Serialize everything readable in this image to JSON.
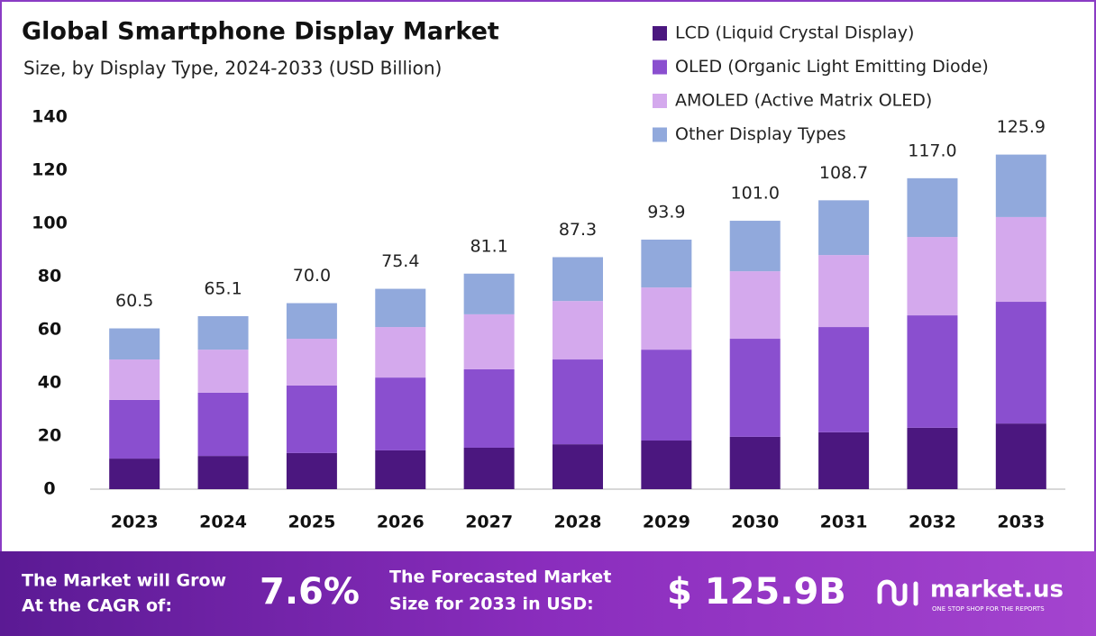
{
  "chart_data": {
    "type": "stacked-bar",
    "title": "Global Smartphone Display Market",
    "subtitle": "Size, by Display Type, 2024-2033 (USD Billion)",
    "categories": [
      "2023",
      "2024",
      "2025",
      "2026",
      "2027",
      "2028",
      "2029",
      "2030",
      "2031",
      "2032",
      "2033"
    ],
    "series": [
      {
        "name": "LCD (Liquid Crystal Display)",
        "color": "#4b177f",
        "values": [
          11.5,
          12.5,
          13.6,
          14.6,
          15.6,
          16.9,
          18.3,
          19.7,
          21.4,
          23.1,
          24.7
        ]
      },
      {
        "name": "OLED (Organic Light Emitting Diode)",
        "color": "#8a4fcf",
        "values": [
          22.1,
          23.8,
          25.4,
          27.4,
          29.5,
          31.9,
          34.2,
          36.9,
          39.6,
          42.3,
          45.8
        ]
      },
      {
        "name": "AMOLED (Active Matrix OLED)",
        "color": "#d4a9ed",
        "values": [
          15.2,
          16.2,
          17.6,
          19.0,
          20.7,
          22.0,
          23.4,
          25.4,
          27.1,
          29.5,
          31.9
        ]
      },
      {
        "name": "Other Display Types",
        "color": "#91a9dc",
        "values": [
          11.7,
          12.6,
          13.4,
          14.4,
          15.3,
          16.5,
          18.0,
          19.0,
          20.6,
          22.1,
          23.5
        ]
      }
    ],
    "totals": [
      60.5,
      65.1,
      70.0,
      75.4,
      81.1,
      87.3,
      93.9,
      101.0,
      108.7,
      117.0,
      125.9
    ],
    "total_labels": [
      "60.5",
      "65.1",
      "70.0",
      "75.4",
      "81.1",
      "87.3",
      "93.9",
      "101.0",
      "108.7",
      "117.0",
      "125.9"
    ],
    "ylim": [
      0,
      140
    ],
    "yticks": [
      0,
      20,
      40,
      60,
      80,
      100,
      120,
      140
    ],
    "grid": false
  },
  "footer": {
    "cagr_text": [
      "The Market will Grow",
      "At the CAGR of:"
    ],
    "cagr_value": "7.6%",
    "forecast_text": [
      "The Forecasted Market",
      "Size for 2033 in USD:"
    ],
    "forecast_value": "$ 125.9B",
    "brand": "market.us",
    "tagline": "ONE STOP SHOP FOR THE REPORTS"
  }
}
